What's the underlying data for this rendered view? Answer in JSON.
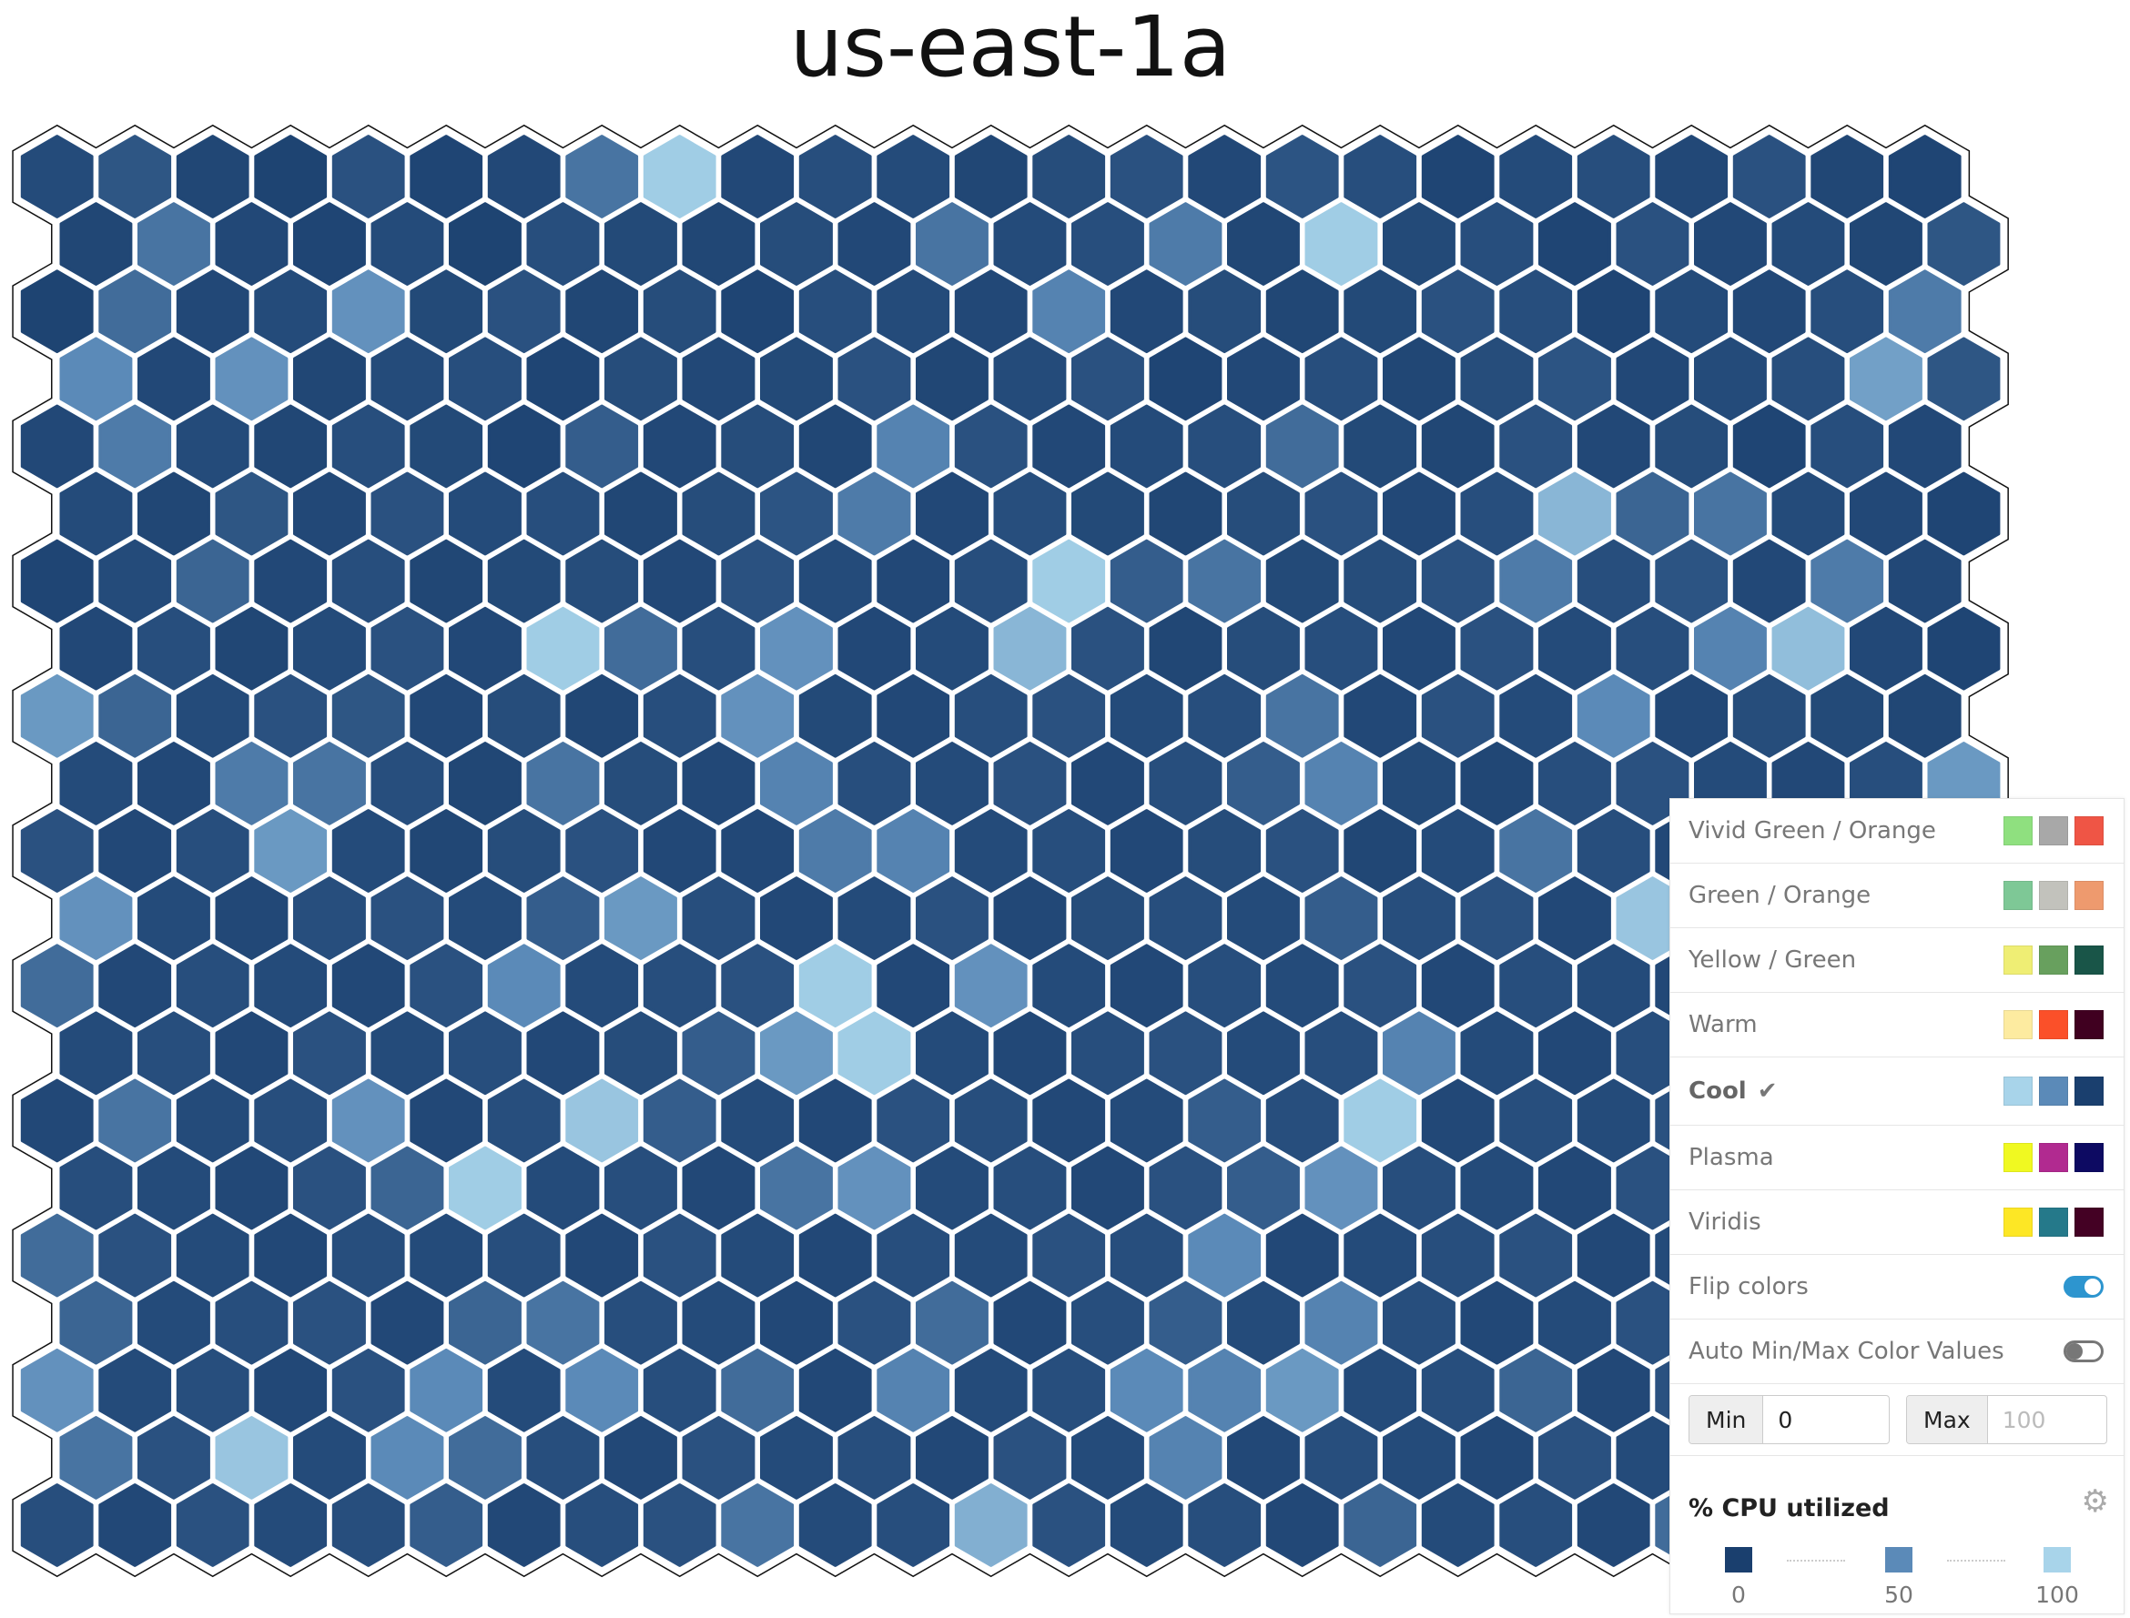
{
  "title": "us-east-1a",
  "chart_data": {
    "type": "heatmap",
    "subtype": "hexbin",
    "title": "us-east-1a",
    "metric": "% CPU utilized",
    "color_scheme": "Cool",
    "flip_colors": true,
    "min": 0,
    "max": 100,
    "scale_colors": {
      "0": "#1a3f6e",
      "50": "#5b8ab8",
      "100": "#a8d4ea"
    },
    "rows": [
      [
        8,
        15,
        5,
        3,
        12,
        4,
        6,
        35,
        95,
        6,
        10,
        8,
        5,
        9,
        12,
        6,
        14,
        10,
        4,
        8,
        10,
        6,
        12,
        5,
        4
      ],
      [
        5,
        35,
        6,
        4,
        8,
        3,
        10,
        7,
        5,
        9,
        6,
        35,
        8,
        10,
        40,
        5,
        95,
        7,
        10,
        4,
        12,
        6,
        8,
        5,
        15
      ],
      [
        3,
        30,
        6,
        8,
        55,
        7,
        12,
        5,
        9,
        4,
        10,
        8,
        6,
        45,
        6,
        9,
        5,
        7,
        12,
        10,
        4,
        8,
        6,
        10,
        40
      ],
      [
        50,
        6,
        55,
        5,
        8,
        10,
        4,
        9,
        6,
        7,
        12,
        5,
        8,
        12,
        4,
        6,
        10,
        5,
        9,
        14,
        6,
        8,
        10,
        65,
        15
      ],
      [
        6,
        40,
        8,
        5,
        10,
        7,
        4,
        20,
        6,
        9,
        5,
        45,
        12,
        6,
        8,
        10,
        30,
        7,
        5,
        12,
        6,
        9,
        4,
        10,
        6
      ],
      [
        8,
        5,
        15,
        6,
        12,
        8,
        10,
        5,
        9,
        14,
        40,
        6,
        10,
        7,
        5,
        9,
        12,
        6,
        10,
        80,
        25,
        35,
        8,
        6,
        4
      ],
      [
        4,
        8,
        25,
        6,
        10,
        5,
        7,
        9,
        6,
        12,
        8,
        6,
        10,
        95,
        20,
        35,
        7,
        9,
        12,
        40,
        10,
        14,
        6,
        40,
        6
      ],
      [
        6,
        10,
        5,
        8,
        12,
        6,
        95,
        30,
        10,
        55,
        6,
        8,
        80,
        12,
        5,
        9,
        10,
        6,
        12,
        8,
        10,
        45,
        85,
        6,
        4
      ],
      [
        60,
        25,
        8,
        12,
        15,
        6,
        9,
        5,
        10,
        55,
        7,
        6,
        10,
        12,
        8,
        10,
        35,
        6,
        12,
        8,
        50,
        6,
        9,
        7,
        5
      ],
      [
        8,
        6,
        40,
        35,
        10,
        5,
        35,
        9,
        6,
        45,
        10,
        8,
        12,
        6,
        10,
        20,
        45,
        7,
        5,
        10,
        12,
        8,
        6,
        10,
        60
      ],
      [
        12,
        6,
        10,
        60,
        8,
        5,
        9,
        12,
        6,
        6,
        40,
        45,
        8,
        10,
        6,
        9,
        12,
        5,
        8,
        35,
        10,
        6,
        8,
        6,
        10
      ],
      [
        55,
        8,
        6,
        10,
        12,
        8,
        20,
        60,
        10,
        6,
        8,
        12,
        6,
        9,
        10,
        8,
        20,
        10,
        12,
        6,
        90,
        8,
        6,
        10,
        8
      ],
      [
        30,
        6,
        10,
        8,
        6,
        12,
        50,
        8,
        10,
        12,
        95,
        6,
        55,
        8,
        6,
        10,
        8,
        12,
        6,
        10,
        8,
        6,
        12,
        8,
        6
      ],
      [
        8,
        10,
        6,
        12,
        8,
        10,
        6,
        9,
        20,
        60,
        95,
        8,
        6,
        10,
        12,
        8,
        10,
        45,
        8,
        6,
        10,
        12,
        8,
        6,
        10
      ],
      [
        6,
        35,
        8,
        10,
        55,
        6,
        10,
        90,
        20,
        8,
        6,
        12,
        10,
        6,
        8,
        20,
        10,
        95,
        6,
        10,
        8,
        12,
        6,
        10,
        8
      ],
      [
        10,
        8,
        6,
        12,
        25,
        95,
        8,
        10,
        6,
        35,
        55,
        8,
        10,
        6,
        12,
        20,
        55,
        10,
        8,
        6,
        12,
        8,
        10,
        6,
        8
      ],
      [
        30,
        12,
        8,
        6,
        10,
        8,
        10,
        6,
        12,
        8,
        6,
        10,
        8,
        12,
        10,
        50,
        6,
        8,
        10,
        12,
        6,
        8,
        10,
        8,
        6
      ],
      [
        25,
        8,
        10,
        12,
        6,
        25,
        35,
        10,
        8,
        6,
        12,
        30,
        6,
        10,
        20,
        8,
        45,
        10,
        6,
        8,
        12,
        10,
        6,
        8,
        10
      ],
      [
        55,
        8,
        10,
        6,
        12,
        50,
        8,
        50,
        10,
        30,
        6,
        45,
        8,
        10,
        50,
        45,
        60,
        8,
        10,
        25,
        6,
        12,
        8,
        10,
        6
      ],
      [
        35,
        12,
        90,
        8,
        50,
        30,
        10,
        6,
        12,
        8,
        10,
        6,
        12,
        8,
        45,
        6,
        10,
        8,
        6,
        12,
        8,
        10,
        6,
        8,
        10
      ],
      [
        10,
        6,
        12,
        8,
        10,
        20,
        6,
        10,
        12,
        35,
        8,
        10,
        75,
        12,
        8,
        10,
        6,
        25,
        8,
        10,
        6,
        30,
        8,
        10,
        6
      ]
    ]
  },
  "panel": {
    "schemes": [
      {
        "label": "Vivid Green / Orange",
        "colors": [
          "#8fe07f",
          "#a8a8a8",
          "#ef5545"
        ],
        "selected": false
      },
      {
        "label": "Green / Orange",
        "colors": [
          "#7ec896",
          "#c2c2bc",
          "#ee9a6e"
        ],
        "selected": false
      },
      {
        "label": "Yellow / Green",
        "colors": [
          "#efee74",
          "#68a05e",
          "#195548"
        ],
        "selected": false
      },
      {
        "label": "Warm",
        "colors": [
          "#fdeba0",
          "#fb5029",
          "#400020"
        ],
        "selected": false
      },
      {
        "label": "Cool",
        "colors": [
          "#a8d4ea",
          "#5b8ab8",
          "#1a3f6e"
        ],
        "selected": true
      },
      {
        "label": "Plasma",
        "colors": [
          "#f0f921",
          "#b12a90",
          "#0d0a62"
        ],
        "selected": false
      },
      {
        "label": "Viridis",
        "colors": [
          "#fde725",
          "#25798a",
          "#440124"
        ],
        "selected": false
      }
    ],
    "flip_colors": {
      "label": "Flip colors",
      "on": true,
      "on_color": "#2d95cf"
    },
    "auto_minmax": {
      "label": "Auto Min/Max Color Values",
      "on": false,
      "off_color": "#777777"
    },
    "min": {
      "label": "Min",
      "value": "0"
    },
    "max": {
      "label": "Max",
      "placeholder": "100"
    },
    "legend": {
      "title": "% CPU utilized",
      "stops": [
        {
          "label": "0",
          "color": "#1a3f6e"
        },
        {
          "label": "50",
          "color": "#5b8ab8"
        },
        {
          "label": "100",
          "color": "#a8d4ea"
        }
      ]
    }
  }
}
